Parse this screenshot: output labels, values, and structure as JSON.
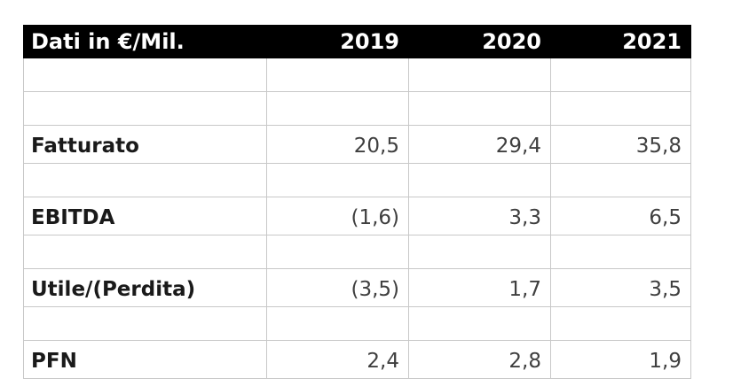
{
  "table": {
    "header": {
      "label": "Dati in €/Mil.",
      "years": [
        "2019",
        "2020",
        "2021"
      ]
    },
    "rows": [
      {
        "type": "empty",
        "label": "",
        "values": [
          "",
          "",
          ""
        ]
      },
      {
        "type": "empty",
        "label": "",
        "values": [
          "",
          "",
          ""
        ]
      },
      {
        "type": "data",
        "label": "Fatturato",
        "values": [
          "20,5",
          "29,4",
          "35,8"
        ]
      },
      {
        "type": "empty",
        "label": "",
        "values": [
          "",
          "",
          ""
        ]
      },
      {
        "type": "data",
        "label": "EBITDA",
        "values": [
          "(1,6)",
          "3,3",
          "6,5"
        ]
      },
      {
        "type": "empty",
        "label": "",
        "values": [
          "",
          "",
          ""
        ]
      },
      {
        "type": "data",
        "label": "Utile/(Perdita)",
        "values": [
          "(3,5)",
          "1,7",
          "3,5"
        ]
      },
      {
        "type": "empty",
        "label": "",
        "values": [
          "",
          "",
          ""
        ]
      },
      {
        "type": "data",
        "label": "PFN",
        "values": [
          "2,4",
          "2,8",
          "1,9"
        ]
      }
    ],
    "colors": {
      "header_bg": "#000000",
      "header_text": "#ffffff",
      "grid": "#c8c8c8",
      "label_text": "#1a1a1a",
      "value_text": "#3f3f3f"
    }
  },
  "chart_data": {
    "type": "table",
    "title": "Dati in €/Mil.",
    "categories": [
      "2019",
      "2020",
      "2021"
    ],
    "series": [
      {
        "name": "Fatturato",
        "values": [
          20.5,
          29.4,
          35.8
        ]
      },
      {
        "name": "EBITDA",
        "values": [
          -1.6,
          3.3,
          6.5
        ]
      },
      {
        "name": "Utile/(Perdita)",
        "values": [
          -3.5,
          1.7,
          3.5
        ]
      },
      {
        "name": "PFN",
        "values": [
          2.4,
          2.8,
          1.9
        ]
      }
    ]
  }
}
